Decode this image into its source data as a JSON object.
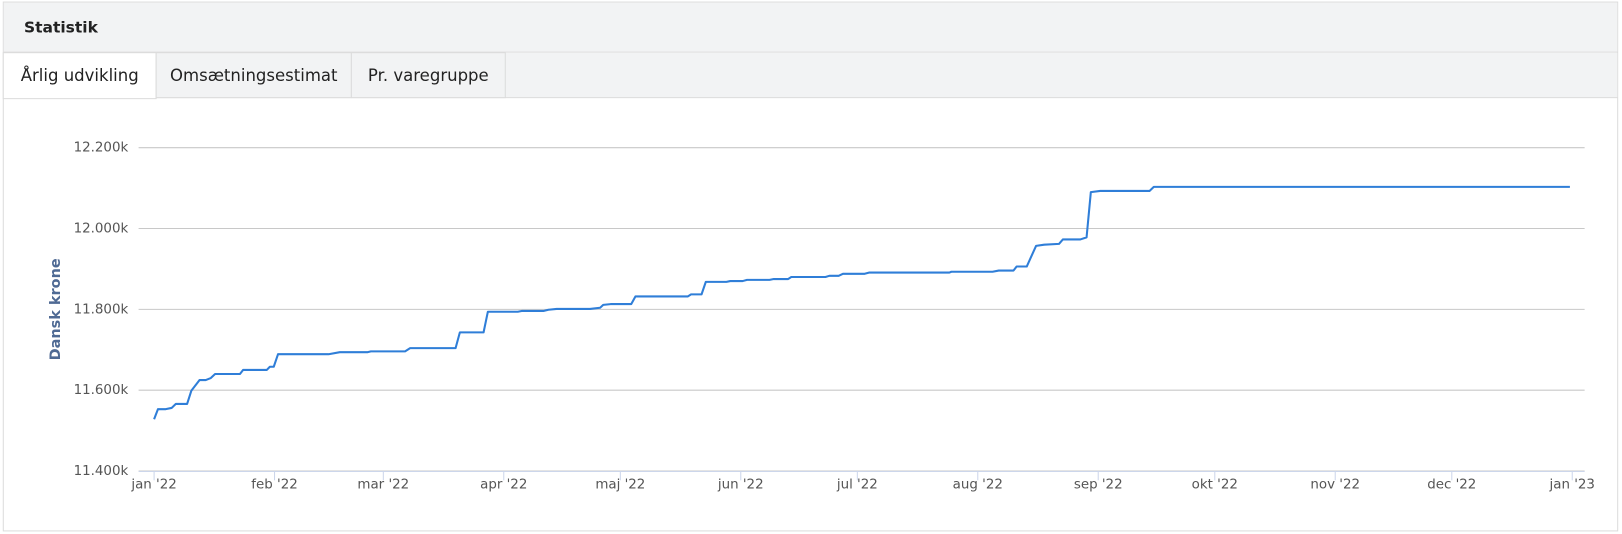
{
  "header": {
    "title": "Statistik"
  },
  "tabs": [
    "Årlig udvikling",
    "Omsætningsestimat",
    "Pr. varegruppe"
  ],
  "active_tab": 0,
  "chart_data": {
    "type": "line",
    "y_label": "Dansk krone",
    "grid": true,
    "xlim": [
      0,
      365
    ],
    "xticks": [
      {
        "value": 0,
        "label": "jan '22"
      },
      {
        "value": 31,
        "label": "feb '22"
      },
      {
        "value": 59,
        "label": "mar '22"
      },
      {
        "value": 90,
        "label": "apr '22"
      },
      {
        "value": 120,
        "label": "maj '22"
      },
      {
        "value": 151,
        "label": "jun '22"
      },
      {
        "value": 181,
        "label": "jul '22"
      },
      {
        "value": 212,
        "label": "aug '22"
      },
      {
        "value": 243,
        "label": "sep '22"
      },
      {
        "value": 273,
        "label": "okt '22"
      },
      {
        "value": 304,
        "label": "nov '22"
      },
      {
        "value": 334,
        "label": "dec '22"
      },
      {
        "value": 365,
        "label": "jan '23"
      }
    ],
    "ylim": [
      11400000,
      12200000
    ],
    "yticks": [
      {
        "value": 11400000,
        "label": "11.400k"
      },
      {
        "value": 11600000,
        "label": "11.600k"
      },
      {
        "value": 11800000,
        "label": "11.800k"
      },
      {
        "value": 12000000,
        "label": "12.000k"
      },
      {
        "value": 12200000,
        "label": "12.200k"
      }
    ],
    "x": [
      0,
      1,
      3,
      4.5,
      5.6,
      8.5,
      9.6,
      11.7,
      13.3,
      14.6,
      15.7,
      22.1,
      22.9,
      29,
      29.8,
      30.8,
      31.9,
      44.9,
      47.8,
      55,
      55.8,
      64.6,
      65.9,
      77.6,
      78.7,
      84.8,
      85.9,
      93.6,
      94.6,
      100.2,
      101.5,
      103.6,
      112.2,
      114.8,
      115.6,
      117.5,
      122.8,
      123.9,
      137.4,
      138.2,
      140.9,
      142,
      147.3,
      148.3,
      151.5,
      152.6,
      158.4,
      159.5,
      163.2,
      164,
      172.8,
      173.8,
      176.2,
      177.3,
      182.9,
      184,
      204.7,
      205.2,
      215.8,
      217.4,
      221.2,
      222,
      224.6,
      227,
      229.1,
      232.9,
      233.9,
      238.4,
      240,
      241.1,
      243.5,
      256.2,
      257.3,
      364.4
    ],
    "series": [
      {
        "name": "Dansk krone",
        "color": "#2f7ed8",
        "values": [
          11528000,
          11553000,
          11553000,
          11556000,
          11566000,
          11566000,
          11599000,
          11625000,
          11625000,
          11630000,
          11640000,
          11640000,
          11650000,
          11650000,
          11658000,
          11658000,
          11689000,
          11689000,
          11694000,
          11694000,
          11696000,
          11696000,
          11704000,
          11704000,
          11743000,
          11743000,
          11794000,
          11794000,
          11796000,
          11796000,
          11799000,
          11801000,
          11801000,
          11804000,
          11811000,
          11813000,
          11813000,
          11832000,
          11832000,
          11837000,
          11837000,
          11868000,
          11868000,
          11870000,
          11870000,
          11873000,
          11873000,
          11875000,
          11875000,
          11880000,
          11880000,
          11883000,
          11883000,
          11888000,
          11888000,
          11891000,
          11891000,
          11893000,
          11893000,
          11896000,
          11896000,
          11906000,
          11906000,
          11957000,
          11960000,
          11962000,
          11973000,
          11973000,
          11978000,
          12090000,
          12093000,
          12093000,
          12103000,
          12103000
        ]
      }
    ]
  }
}
